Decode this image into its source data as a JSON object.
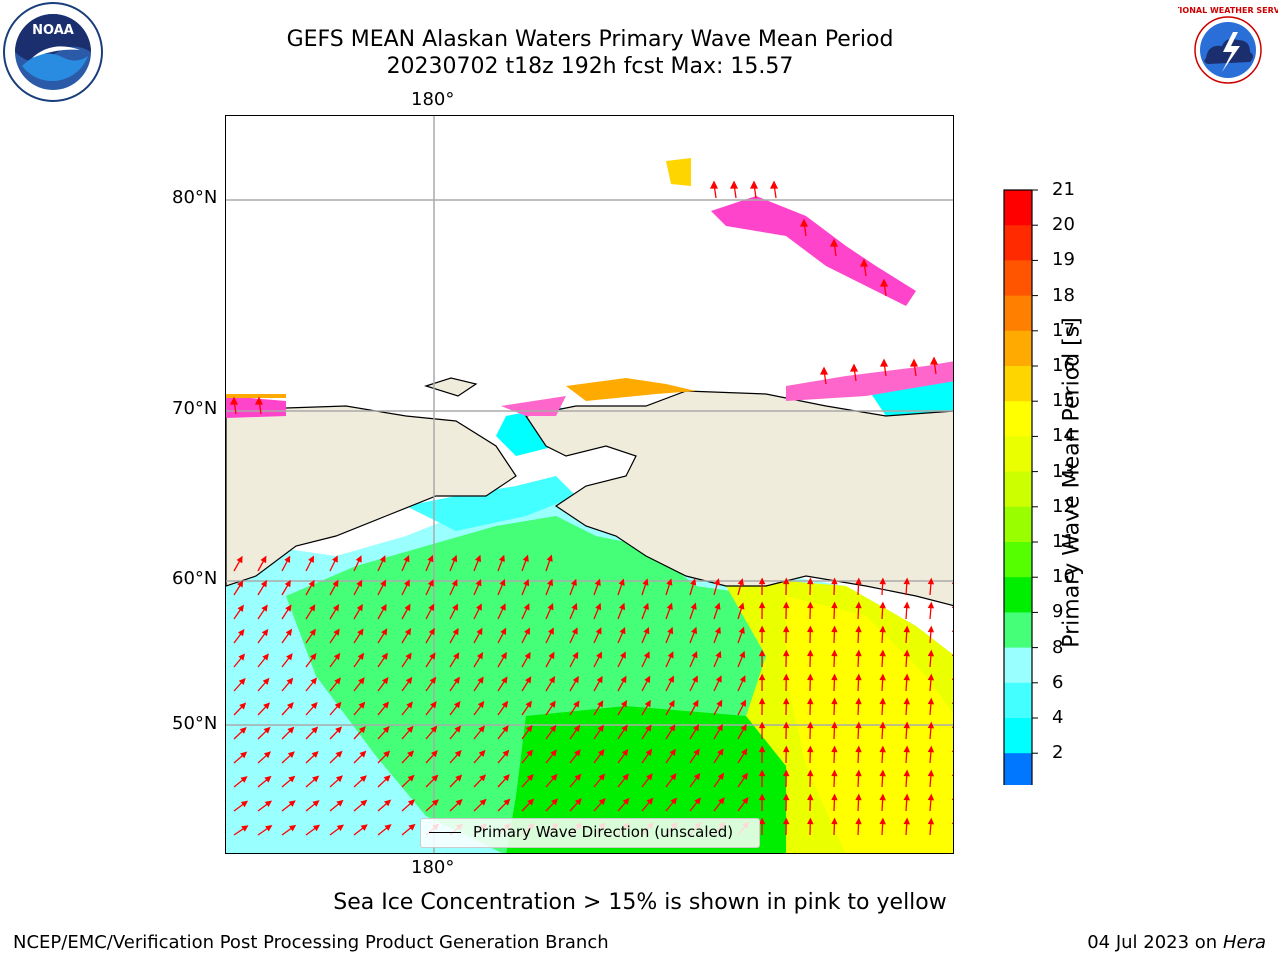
{
  "title": {
    "line1": "GEFS MEAN Alaskan Waters Primary Wave Mean Period",
    "line2": "20230702 t18z 192h fcst   Max: 15.57"
  },
  "logos": {
    "left": {
      "name": "noaa-logo",
      "text": "NOAA"
    },
    "right": {
      "name": "nws-logo",
      "text": "NATIONAL WEATHER SERVICE"
    }
  },
  "axes": {
    "lon_top": "180°",
    "lon_bottom": "180°",
    "lat_labels": [
      "80°N",
      "70°N",
      "60°N",
      "50°N"
    ]
  },
  "legend": {
    "label": "Primary Wave Direction (unscaled)"
  },
  "colorbar": {
    "title": "Primary Wave Mean Period [s]",
    "ticks": [
      "21",
      "20",
      "19",
      "18",
      "17",
      "16",
      "15",
      "14",
      "13",
      "12",
      "11",
      "10",
      "9",
      "8",
      "6",
      "4",
      "2"
    ],
    "colors": [
      "#ff0000",
      "#ff2a00",
      "#ff5500",
      "#ff8000",
      "#ffaa00",
      "#ffd500",
      "#ffff00",
      "#eaff00",
      "#ccff00",
      "#99ff00",
      "#55ff00",
      "#00ee00",
      "#44ff77",
      "#99ffff",
      "#44ffff",
      "#00ffff",
      "#0077ff"
    ],
    "extend_color": "#0000ff"
  },
  "caption": "Sea Ice Concentration > 15% is shown in pink to yellow",
  "footer": {
    "left": "NCEP/EMC/Verification Post Processing Product Generation Branch",
    "right_date": "04 Jul 2023 on ",
    "right_host": "Hera"
  }
}
